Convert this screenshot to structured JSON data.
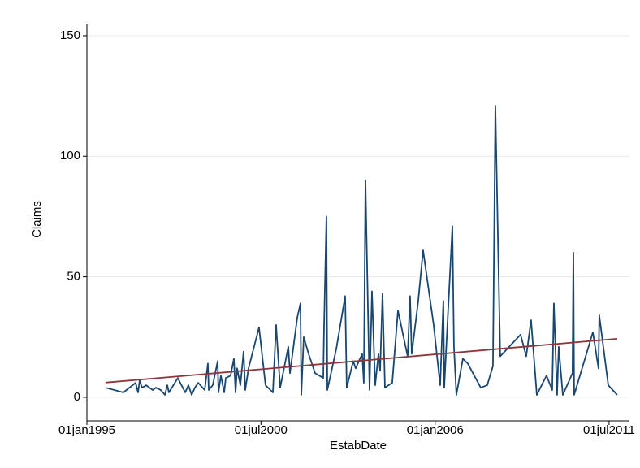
{
  "chart_data": {
    "type": "line",
    "x_label": "EstabDate",
    "y_label": "Claims",
    "xlim": [
      "1995-01-01",
      "2012-02-21"
    ],
    "xticks": [
      {
        "value": "1995-01-01",
        "label": "01jan1995"
      },
      {
        "value": "2000-07-01",
        "label": "01jul2000"
      },
      {
        "value": "2006-01-01",
        "label": "01jan2006"
      },
      {
        "value": "2011-07-01",
        "label": "01jul2011"
      }
    ],
    "ylim": [
      -9.8,
      154.7
    ],
    "yticks": [
      0,
      50,
      100,
      150
    ],
    "grid": true,
    "series": [
      {
        "color": "#1a476f",
        "x": [
          "1995-08-03",
          "1996-02-26",
          "1996-07-16",
          "1996-08-13",
          "1996-09-01",
          "1996-09-29",
          "1996-11-15",
          "1997-01-29",
          "1997-03-07",
          "1997-05-03",
          "1997-06-19",
          "1997-07-17",
          "1997-08-04",
          "1997-11-15",
          "1998-01-11",
          "1998-02-08",
          "1998-03-17",
          "1998-04-24",
          "1998-05-31",
          "1998-07-08",
          "1998-09-21",
          "1998-10-28",
          "1998-11-07",
          "1998-12-23",
          "1999-02-18",
          "1999-02-27",
          "1999-03-27",
          "1999-05-04",
          "1999-05-22",
          "1999-07-17",
          "1999-08-24",
          "1999-09-12",
          "1999-09-30",
          "1999-11-07",
          "1999-12-14",
          "2000-01-02",
          "2000-02-09",
          "2000-06-09",
          "2000-08-23",
          "2000-11-16",
          "2000-12-23",
          "2001-02-08",
          "2001-05-13",
          "2001-06-01",
          "2001-08-24",
          "2001-09-30",
          "2001-10-10",
          "2001-11-07",
          "2002-01-02",
          "2002-03-18",
          "2002-06-20",
          "2002-06-29",
          "2002-07-27",
          "2002-08-06",
          "2002-11-17",
          "2003-02-28",
          "2003-03-18",
          "2003-06-01",
          "2003-06-29",
          "2003-09-12",
          "2003-10-01",
          "2003-10-20",
          "2003-12-06",
          "2004-01-03",
          "2004-02-09",
          "2004-03-18",
          "2004-04-06",
          "2004-05-04",
          "2004-06-01",
          "2004-08-24",
          "2004-10-29",
          "2005-02-18",
          "2005-03-18",
          "2005-04-06",
          "2005-06-20",
          "2005-08-15",
          "2005-12-15",
          "2006-02-28",
          "2006-04-06",
          "2006-04-16",
          "2006-07-19",
          "2006-08-06",
          "2006-09-03",
          "2006-11-17",
          "2007-01-13",
          "2007-06-11",
          "2007-08-25",
          "2007-10-30",
          "2007-11-27",
          "2008-01-22",
          "2008-09-13",
          "2008-11-17",
          "2009-01-12",
          "2009-03-19",
          "2009-07-09",
          "2009-09-13",
          "2009-10-02",
          "2009-11-08",
          "2009-11-27",
          "2010-01-13",
          "2010-05-05",
          "2010-05-15",
          "2010-05-24",
          "2010-12-26",
          "2011-03-01",
          "2011-03-10",
          "2011-06-22",
          "2011-10-03"
        ],
        "values": [
          4,
          2,
          6,
          2,
          7,
          4,
          5,
          3,
          4,
          3,
          1,
          5,
          2,
          8,
          4,
          2,
          5,
          1,
          4,
          6,
          3,
          14,
          3,
          5,
          15,
          2,
          9,
          2,
          8,
          9,
          16,
          2,
          12,
          5,
          19,
          3,
          12,
          29,
          5,
          2,
          30,
          4,
          21,
          10,
          33,
          39,
          1,
          25,
          18,
          10,
          8,
          29,
          75,
          3,
          20,
          42,
          4,
          15,
          12,
          18,
          6,
          90,
          3,
          44,
          5,
          18,
          11,
          43,
          4,
          6,
          36,
          17,
          42,
          18,
          40,
          61,
          30,
          5,
          40,
          4,
          71,
          21,
          1,
          16,
          14,
          4,
          5,
          13,
          121,
          17,
          26,
          17,
          32,
          1,
          9,
          3,
          39,
          1,
          21,
          1,
          10,
          60,
          1,
          27,
          12,
          34,
          5,
          1
        ]
      },
      {
        "color": "#90353b",
        "x": [
          "1995-08-03",
          "2011-10-03"
        ],
        "values": [
          6.1,
          24.3
        ]
      }
    ]
  }
}
